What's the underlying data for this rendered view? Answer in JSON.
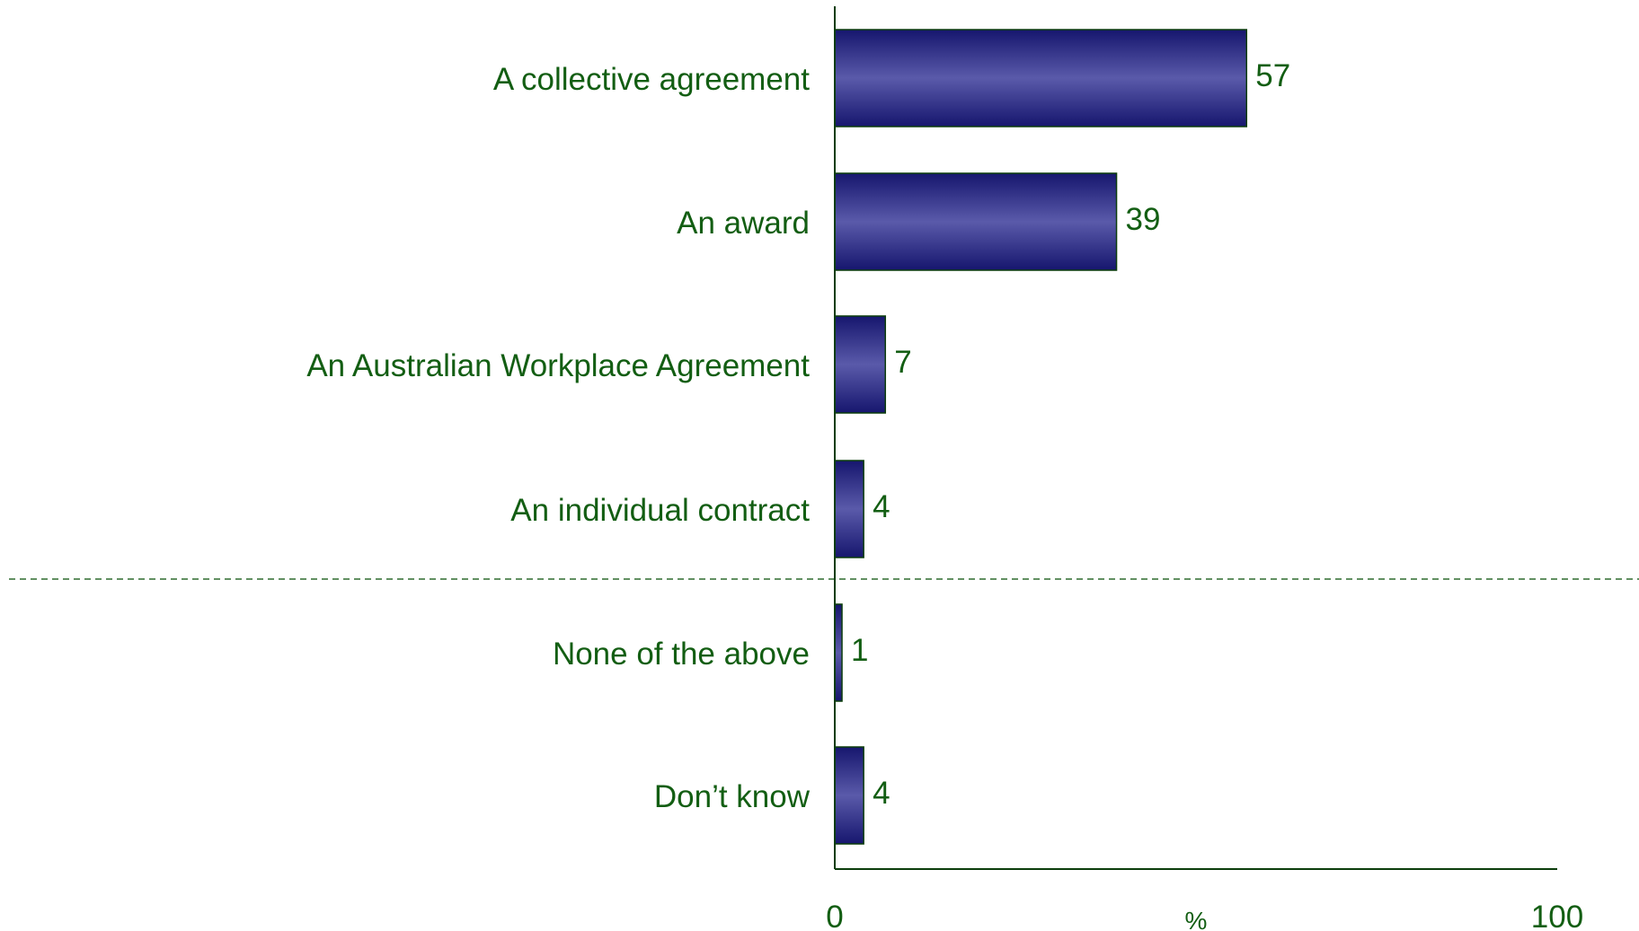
{
  "chart_data": {
    "type": "bar",
    "orientation": "horizontal",
    "categories": [
      "A collective agreement",
      "An award",
      "An Australian Workplace Agreement",
      "An individual contract",
      "None of the above",
      "Don’t know"
    ],
    "values": [
      57,
      39,
      7,
      4,
      1,
      4
    ],
    "value_labels": [
      "57",
      "39",
      "7",
      "4",
      "1",
      "4"
    ],
    "xlabel": "%",
    "ylabel": "",
    "xlim": [
      0,
      100
    ],
    "x_ticks": [
      "0",
      "100"
    ],
    "grid": false,
    "legend": "none",
    "separator_after_category_index": 3,
    "colors": {
      "bar_fill_edge": "#16166e",
      "bar_fill_center": "#5a5aaa",
      "bar_stroke": "#0c3d0c",
      "text": "#135e13",
      "axis": "#0c3d0c",
      "separator": "#2e6b2e"
    }
  }
}
